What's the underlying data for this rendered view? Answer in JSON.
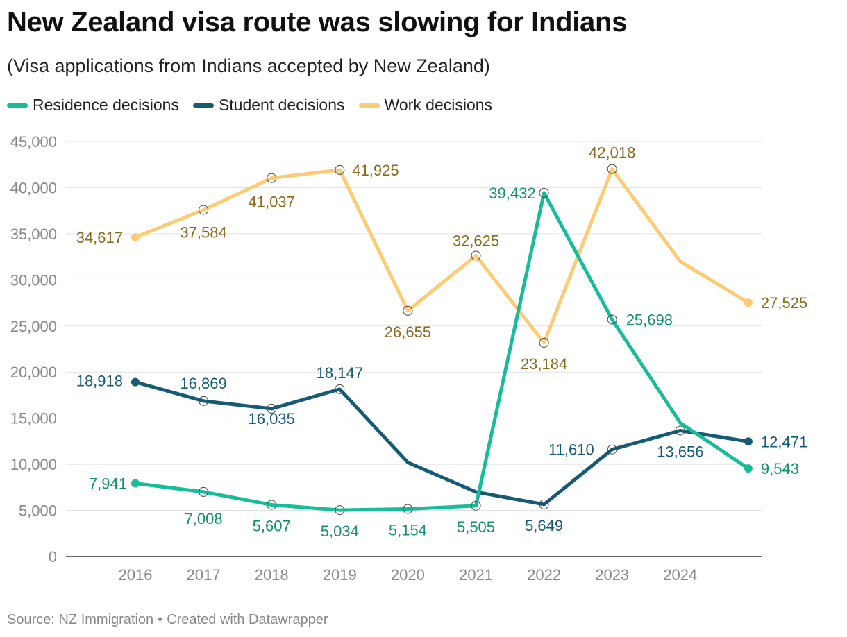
{
  "header": {
    "title": "New Zealand visa route was slowing for Indians",
    "subtitle": "(Visa applications from Indians accepted by New Zealand)"
  },
  "footer": {
    "source": "Source: NZ Immigration",
    "separator": "•",
    "credit": "Created with Datawrapper"
  },
  "chart_data": {
    "type": "line",
    "x_tick_labels": [
      "2016",
      "2017",
      "2018",
      "2019",
      "2020",
      "2021",
      "2022",
      "2023",
      "2024"
    ],
    "y_ticks": [
      0,
      5000,
      10000,
      15000,
      20000,
      25000,
      30000,
      35000,
      40000,
      45000
    ],
    "y_tick_labels": [
      "0",
      "5,000",
      "10,000",
      "15,000",
      "20,000",
      "25,000",
      "30,000",
      "35,000",
      "40,000",
      "45,000"
    ],
    "ylim": [
      0,
      45000
    ],
    "grid": true,
    "legend_position": "top-left",
    "series": [
      {
        "name": "Residence decisions",
        "color": "#17bc9b",
        "label_color": "#138f74",
        "values": [
          7941,
          7008,
          5607,
          5034,
          5154,
          5505,
          39432,
          25698,
          14500,
          9543
        ],
        "labels": [
          "7,941",
          "7,008",
          "5,607",
          "5,034",
          "5,154",
          "5,505",
          "39,432",
          "25,698",
          "",
          "9,543"
        ]
      },
      {
        "name": "Student decisions",
        "color": "#165a74",
        "label_color": "#165a74",
        "values": [
          18918,
          16869,
          16035,
          18147,
          10200,
          7000,
          5649,
          11610,
          13656,
          12471
        ],
        "labels": [
          "18,918",
          "16,869",
          "16,035",
          "18,147",
          "",
          "",
          "5,649",
          "11,610",
          "13,656",
          "12,471"
        ]
      },
      {
        "name": "Work decisions",
        "color": "#fccb74",
        "label_color": "#8a6a1f",
        "values": [
          34617,
          37584,
          41037,
          41925,
          26655,
          32625,
          23184,
          42018,
          32000,
          27525
        ],
        "labels": [
          "34,617",
          "37,584",
          "41,037",
          "41,925",
          "26,655",
          "32,625",
          "23,184",
          "42,018",
          "",
          "27,525"
        ]
      }
    ]
  }
}
